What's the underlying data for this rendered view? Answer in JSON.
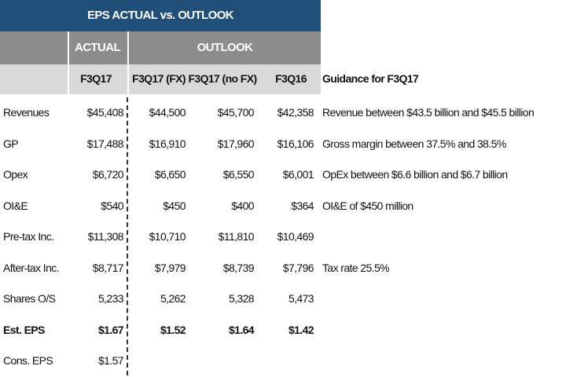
{
  "header": {
    "title": "EPS ACTUAL vs. OUTLOOK",
    "groups": [
      "ACTUAL",
      "OUTLOOK"
    ]
  },
  "table": {
    "columns": [
      "F3Q17",
      "F3Q17 (FX)",
      "F3Q17 (no FX)",
      "F3Q16",
      "Guidance for F3Q17"
    ],
    "rows": [
      {
        "label": "Revenues",
        "values": [
          "$45,408",
          "$44,500",
          "$45,700",
          "$42,358"
        ],
        "guidance": "Revenue between $43.5 billion and $45.5 billion"
      },
      {
        "label": "GP",
        "values": [
          "$17,488",
          "$16,910",
          "$17,960",
          "$16,106"
        ],
        "guidance": "Gross margin between 37.5% and 38.5%"
      },
      {
        "label": "Opex",
        "values": [
          "$6,720",
          "$6,650",
          "$6,550",
          "$6,001"
        ],
        "guidance": "OpEx between $6.6 billion and $6.7 billion"
      },
      {
        "label": "OI&E",
        "values": [
          "$540",
          "$450",
          "$400",
          "$364"
        ],
        "guidance": "OI&E of $450 million"
      },
      {
        "label": "Pre-tax Inc.",
        "values": [
          "$11,308",
          "$10,710",
          "$11,810",
          "$10,469"
        ],
        "guidance": null
      },
      {
        "label": "After-tax Inc.",
        "values": [
          "$8,717",
          "$7,979",
          "$8,739",
          "$7,796"
        ],
        "guidance": "Tax rate 25.5%"
      },
      {
        "label": "Shares O/S",
        "values": [
          "5,233",
          "5,262",
          "5,328",
          "5,473"
        ],
        "guidance": null
      },
      {
        "label": "Est. EPS",
        "values": [
          "$1.67",
          "$1.52",
          "$1.64",
          "$1.42"
        ],
        "guidance": null,
        "bold": true
      },
      {
        "label": "Cons. EPS",
        "values": [
          "$1.57",
          null,
          null,
          null
        ],
        "guidance": null
      }
    ]
  }
}
